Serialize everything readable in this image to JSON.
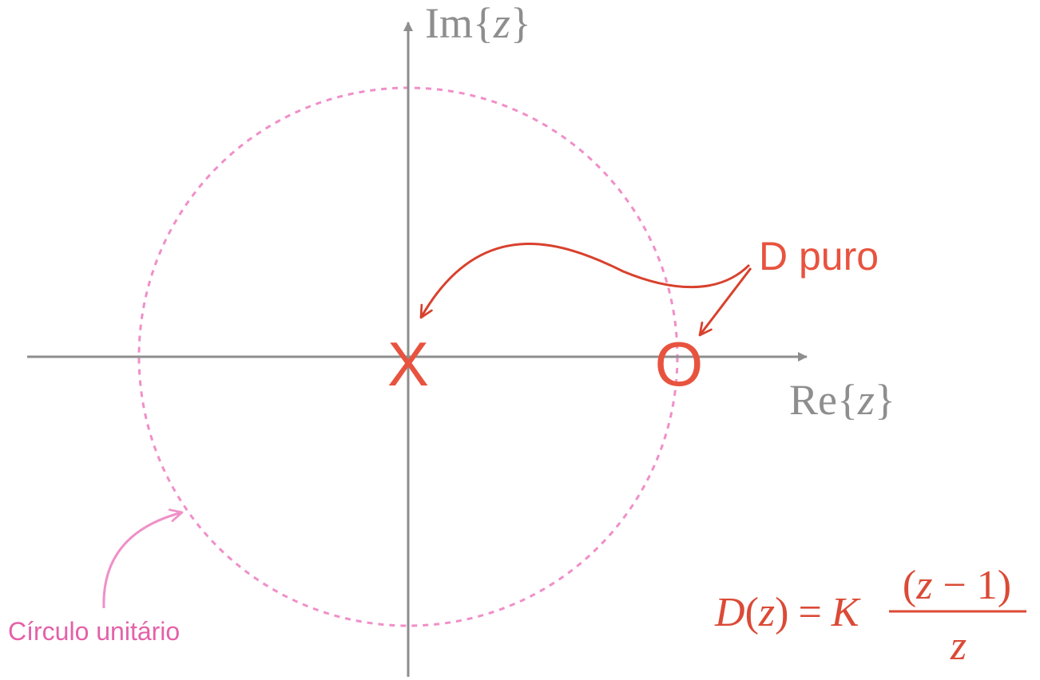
{
  "axes": {
    "imaginary_label_prefix": "Im",
    "imaginary_label_var": "z",
    "real_label_prefix": "Re",
    "real_label_var": "z",
    "open_brace": "{",
    "close_brace": "}"
  },
  "markers": {
    "pole_symbol": "X",
    "zero_symbol": "O"
  },
  "annotations": {
    "controller_label": "D puro",
    "unit_circle_label": "Círculo unitário"
  },
  "formula": {
    "lhs_func": "D",
    "lhs_open": "(",
    "lhs_var": "z",
    "lhs_close": ")",
    "equals": "=",
    "gain": "K",
    "numerator_open": "(",
    "numerator_var": "z",
    "numerator_op": " − 1)",
    "denominator_var": "z"
  },
  "colors": {
    "axis": "#8e8e8e",
    "unit_circle": "#f08fc8",
    "markers": "#e8533f",
    "callout_arrows": "#d8412d",
    "unit_circle_arrow": "#f08fc8",
    "formula": "#db4a36"
  }
}
